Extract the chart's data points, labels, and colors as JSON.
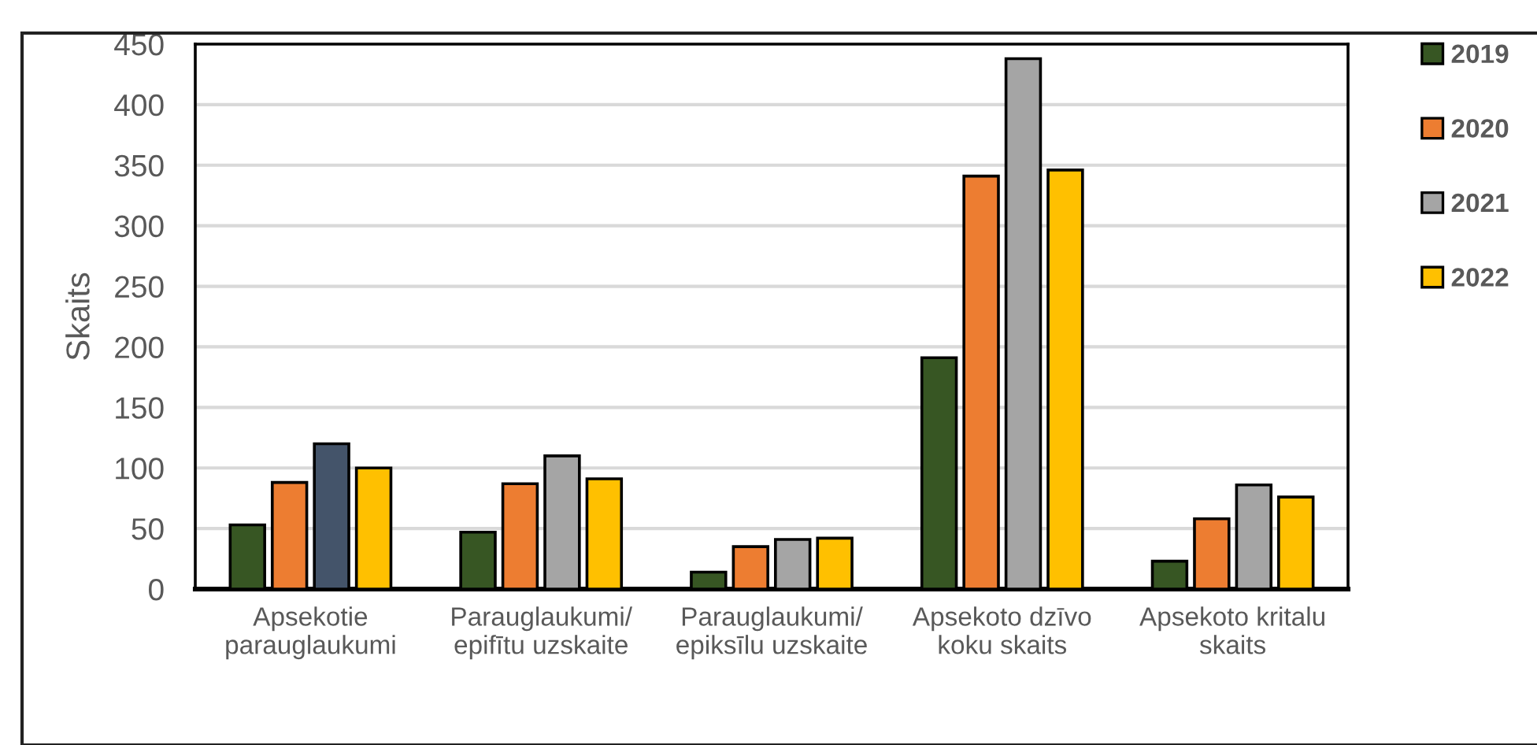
{
  "chart_data": {
    "type": "bar",
    "ylabel": "Skaits",
    "categories": [
      "Apsekotie\nparauglaukumi",
      "Parauglaukumi/\nepifītu uzskaite",
      "Parauglaukumi/\nepiksīlu uzskaite",
      "Apsekoto dzīvo\nkoku skaits",
      "Apsekoto kritalu\nskaits"
    ],
    "series": [
      {
        "name": "2019",
        "color": "#375623",
        "values": [
          53,
          47,
          14,
          191,
          23
        ]
      },
      {
        "name": "2020",
        "color": "#ed7d31",
        "values": [
          88,
          87,
          35,
          341,
          58
        ]
      },
      {
        "name": "2021",
        "color": "#a5a5a5",
        "colors": [
          "#44546a",
          "#a5a5a5",
          "#a5a5a5",
          "#a5a5a5",
          "#a5a5a5"
        ],
        "values": [
          120,
          110,
          41,
          438,
          86
        ]
      },
      {
        "name": "2022",
        "color": "#ffc000",
        "values": [
          100,
          91,
          42,
          346,
          76
        ]
      }
    ],
    "ylim": [
      0,
      450
    ],
    "yticks": [
      0,
      50,
      100,
      150,
      200,
      250,
      300,
      350,
      400,
      450
    ],
    "grid": "y",
    "legend": "right"
  }
}
